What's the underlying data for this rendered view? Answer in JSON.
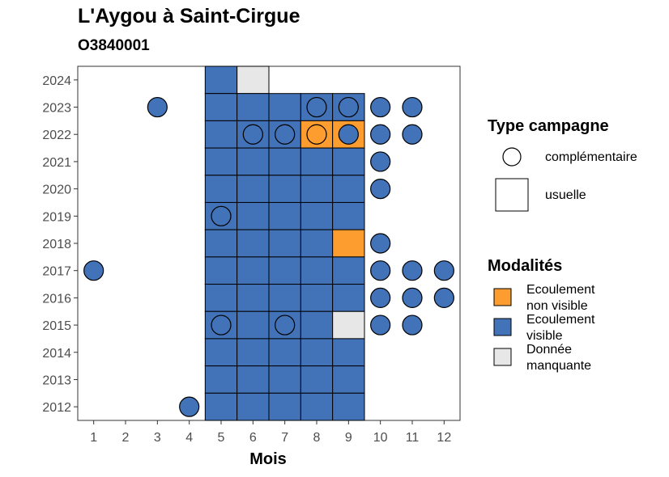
{
  "chart_data": {
    "type": "heatmap",
    "title": "L'Aygou à Saint-Cirgue",
    "subtitle": "O3840001",
    "xlabel": "Mois",
    "ylabel": "",
    "x_ticks": [
      1,
      2,
      3,
      4,
      5,
      6,
      7,
      8,
      9,
      10,
      11,
      12
    ],
    "y_ticks": [
      2012,
      2013,
      2014,
      2015,
      2016,
      2017,
      2018,
      2019,
      2020,
      2021,
      2022,
      2023,
      2024
    ],
    "xlim": [
      0.5,
      12.5
    ],
    "ylim": [
      2011.5,
      2024.5
    ],
    "grid": false,
    "legend_placement": "right",
    "legend_type": {
      "title": "Type campagne",
      "items": [
        {
          "key": "complementaire",
          "label": "complémentaire",
          "shape": "circle"
        },
        {
          "key": "usuelle",
          "label": "usuelle",
          "shape": "square"
        }
      ]
    },
    "legend_modalites": {
      "title": "Modalités",
      "items": [
        {
          "key": "ENV",
          "lines": [
            "Ecoulement",
            "non visible"
          ],
          "color": "#FD9D30"
        },
        {
          "key": "EV",
          "lines": [
            "Ecoulement",
            "visible"
          ],
          "color": "#4272B7"
        },
        {
          "key": "DM",
          "lines": [
            "Donnée",
            "manquante"
          ],
          "color": "#E7E7E7"
        }
      ]
    },
    "usuelle": [
      {
        "year": 2024,
        "months": [
          5,
          6
        ],
        "values": [
          "EV",
          "DM"
        ]
      },
      {
        "year": 2023,
        "months": [
          5,
          6,
          7,
          8,
          9
        ],
        "values": [
          "EV",
          "EV",
          "EV",
          "EV",
          "EV"
        ]
      },
      {
        "year": 2022,
        "months": [
          5,
          6,
          7,
          8,
          9
        ],
        "values": [
          "EV",
          "EV",
          "EV",
          "ENV",
          "ENV"
        ]
      },
      {
        "year": 2021,
        "months": [
          5,
          6,
          7,
          8,
          9
        ],
        "values": [
          "EV",
          "EV",
          "EV",
          "EV",
          "EV"
        ]
      },
      {
        "year": 2020,
        "months": [
          5,
          6,
          7,
          8,
          9
        ],
        "values": [
          "EV",
          "EV",
          "EV",
          "EV",
          "EV"
        ]
      },
      {
        "year": 2019,
        "months": [
          5,
          6,
          7,
          8,
          9
        ],
        "values": [
          "EV",
          "EV",
          "EV",
          "EV",
          "EV"
        ]
      },
      {
        "year": 2018,
        "months": [
          5,
          6,
          7,
          8,
          9
        ],
        "values": [
          "EV",
          "EV",
          "EV",
          "EV",
          "ENV"
        ]
      },
      {
        "year": 2017,
        "months": [
          5,
          6,
          7,
          8,
          9
        ],
        "values": [
          "EV",
          "EV",
          "EV",
          "EV",
          "EV"
        ]
      },
      {
        "year": 2016,
        "months": [
          5,
          6,
          7,
          8,
          9
        ],
        "values": [
          "EV",
          "EV",
          "EV",
          "EV",
          "EV"
        ]
      },
      {
        "year": 2015,
        "months": [
          5,
          6,
          7,
          8,
          9
        ],
        "values": [
          "EV",
          "EV",
          "EV",
          "EV",
          "DM"
        ]
      },
      {
        "year": 2014,
        "months": [
          5,
          6,
          7,
          8,
          9
        ],
        "values": [
          "EV",
          "EV",
          "EV",
          "EV",
          "EV"
        ]
      },
      {
        "year": 2013,
        "months": [
          5,
          6,
          7,
          8,
          9
        ],
        "values": [
          "EV",
          "EV",
          "EV",
          "EV",
          "EV"
        ]
      },
      {
        "year": 2012,
        "months": [
          5,
          6,
          7,
          8,
          9
        ],
        "values": [
          "EV",
          "EV",
          "EV",
          "EV",
          "EV"
        ]
      }
    ],
    "complementaire": [
      {
        "year": 2023,
        "month": 3,
        "value": "EV"
      },
      {
        "year": 2023,
        "month": 8,
        "value": "EV"
      },
      {
        "year": 2023,
        "month": 9,
        "value": "EV"
      },
      {
        "year": 2023,
        "month": 10,
        "value": "EV"
      },
      {
        "year": 2023,
        "month": 11,
        "value": "EV"
      },
      {
        "year": 2022,
        "month": 6,
        "value": "EV"
      },
      {
        "year": 2022,
        "month": 7,
        "value": "EV"
      },
      {
        "year": 2022,
        "month": 8,
        "value": "ENV"
      },
      {
        "year": 2022,
        "month": 9,
        "value": "EV"
      },
      {
        "year": 2022,
        "month": 10,
        "value": "EV"
      },
      {
        "year": 2022,
        "month": 11,
        "value": "EV"
      },
      {
        "year": 2021,
        "month": 10,
        "value": "EV"
      },
      {
        "year": 2020,
        "month": 10,
        "value": "EV"
      },
      {
        "year": 2019,
        "month": 5,
        "value": "EV"
      },
      {
        "year": 2018,
        "month": 10,
        "value": "EV"
      },
      {
        "year": 2017,
        "month": 1,
        "value": "EV"
      },
      {
        "year": 2017,
        "month": 10,
        "value": "EV"
      },
      {
        "year": 2017,
        "month": 11,
        "value": "EV"
      },
      {
        "year": 2017,
        "month": 12,
        "value": "EV"
      },
      {
        "year": 2016,
        "month": 10,
        "value": "EV"
      },
      {
        "year": 2016,
        "month": 11,
        "value": "EV"
      },
      {
        "year": 2016,
        "month": 12,
        "value": "EV"
      },
      {
        "year": 2015,
        "month": 5,
        "value": "EV"
      },
      {
        "year": 2015,
        "month": 7,
        "value": "EV"
      },
      {
        "year": 2015,
        "month": 10,
        "value": "EV"
      },
      {
        "year": 2015,
        "month": 11,
        "value": "EV"
      },
      {
        "year": 2012,
        "month": 4,
        "value": "EV"
      }
    ]
  }
}
